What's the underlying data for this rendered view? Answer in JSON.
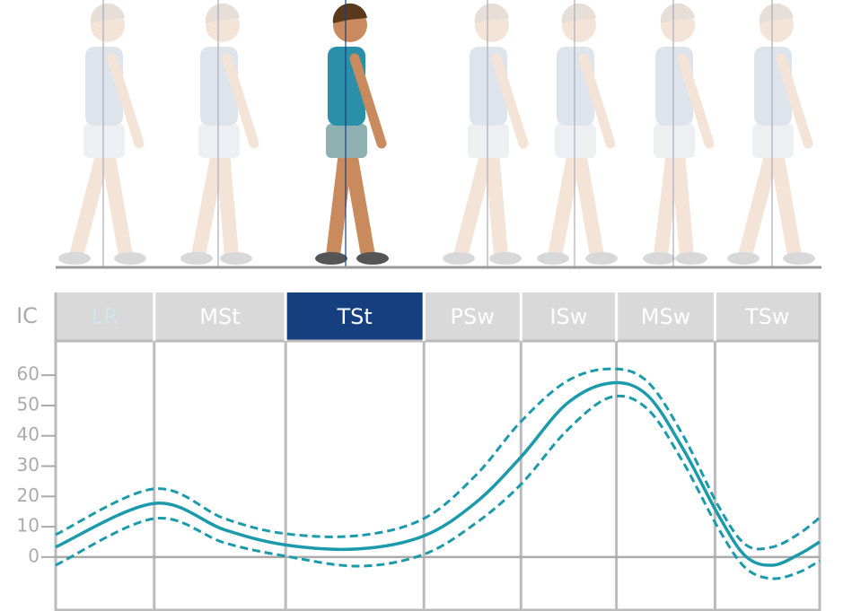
{
  "chart_data": {
    "type": "line",
    "phases": [
      "IC",
      "LR",
      "MSt",
      "TSt",
      "PSw",
      "ISw",
      "MSw",
      "TSw"
    ],
    "phase_bounds": [
      0,
      12.9,
      30.1,
      48.2,
      60.9,
      73.4,
      86.3,
      100
    ],
    "highlight_phase": 3,
    "x": [
      0,
      12.9,
      22.1,
      30.1,
      39.7,
      48.2,
      55.0,
      60.9,
      66.9,
      72.6,
      77.4,
      82.1,
      86.8,
      90.3,
      93.8,
      97.3,
      100
    ],
    "xlim": [
      0,
      100
    ],
    "ylim": [
      -17.5,
      71.3
    ],
    "yticks": [
      0,
      10,
      20,
      30,
      40,
      50,
      60
    ],
    "series": [
      {
        "color": "#1b9aab",
        "dash": false,
        "values": [
          3.3,
          17.7,
          9,
          4,
          2.7,
          7,
          18,
          33,
          50.6,
          57.4,
          53.5,
          35.8,
          13.6,
          0.3,
          -2.7,
          0.9,
          5
        ]
      },
      {
        "color": "#1b9aab",
        "dash": true,
        "values": [
          7.4,
          22.5,
          12.7,
          7.7,
          7.1,
          12.7,
          27,
          44.7,
          58,
          62.1,
          58,
          40.2,
          16.6,
          4.1,
          3.3,
          7.7,
          13
        ]
      },
      {
        "color": "#1b9aab",
        "dash": true,
        "values": [
          -2.7,
          12.7,
          4.7,
          0.3,
          -3,
          0.9,
          11.2,
          24,
          41.7,
          52.7,
          49,
          31.4,
          9.2,
          -3.6,
          -7.1,
          -5,
          -1.2
        ]
      }
    ]
  }
}
